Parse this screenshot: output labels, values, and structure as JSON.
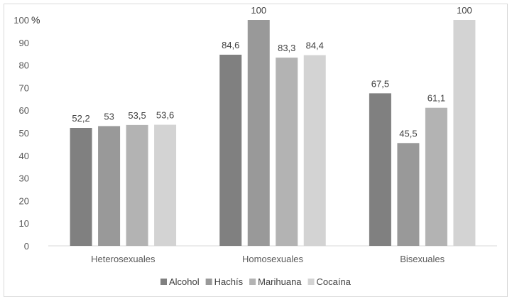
{
  "chart_data": {
    "type": "bar",
    "categories": [
      "Heterosexuales",
      "Homosexuales",
      "Bisexuales"
    ],
    "series": [
      {
        "name": "Alcohol",
        "values": [
          52.2,
          84.6,
          67.5
        ],
        "labels": [
          "52,2",
          "84,6",
          "67,5"
        ],
        "color": "#808080"
      },
      {
        "name": "Hachís",
        "values": [
          53,
          100,
          45.5
        ],
        "labels": [
          "53",
          "100",
          "45,5"
        ],
        "color": "#999999"
      },
      {
        "name": "Marihuana",
        "values": [
          53.5,
          83.3,
          61.1
        ],
        "labels": [
          "53,5",
          "83,3",
          "61,1"
        ],
        "color": "#b3b3b3"
      },
      {
        "name": "Cocaína",
        "values": [
          53.6,
          84.4,
          100
        ],
        "labels": [
          "53,6",
          "84,4",
          "100"
        ],
        "color": "#d3d3d3"
      }
    ],
    "y_unit_label": "%",
    "ylim": [
      0,
      100
    ],
    "yticks": [
      0,
      10,
      20,
      30,
      40,
      50,
      60,
      70,
      80,
      90,
      100
    ],
    "gridlines": false,
    "legend_position": "bottom"
  }
}
